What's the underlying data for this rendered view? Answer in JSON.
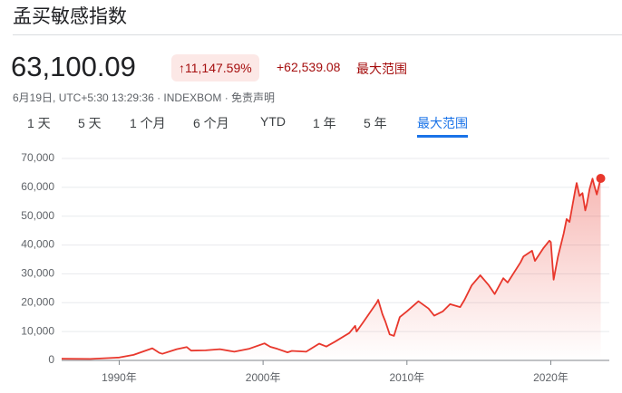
{
  "header": {
    "title": "孟买敏感指数",
    "price": "63,100.09",
    "change_pct": "↑11,147.59%",
    "change_abs": "+62,539.08",
    "range_label": "最大范围",
    "meta": "6月19日, UTC+5:30 13:29:36 · INDEXBOM ·",
    "disclaimer": "免责声明"
  },
  "tabs": [
    "1 天",
    "5 天",
    "1 个月",
    "6 个月",
    "YTD",
    "1 年",
    "5 年",
    "最大范围"
  ],
  "chart_data": {
    "type": "area",
    "color": "#e8372c",
    "x": [
      1986,
      1988,
      1990,
      1991,
      1992.3,
      1992.8,
      1993,
      1994,
      1994.7,
      1995,
      1996,
      1997,
      1998,
      1999,
      2000.1,
      2000.5,
      2001,
      2001.7,
      2002,
      2003,
      2003.9,
      2004.4,
      2005,
      2006,
      2006.4,
      2006.5,
      2007,
      2007.9,
      2008.0,
      2008.3,
      2008.5,
      2008.8,
      2009.1,
      2009.5,
      2010,
      2010.8,
      2011.5,
      2011.9,
      2012.5,
      2013,
      2013.7,
      2014,
      2014.5,
      2015.1,
      2015.7,
      2016.1,
      2016.7,
      2017,
      2017.9,
      2018.1,
      2018.7,
      2018.9,
      2019.5,
      2019.9,
      2020.0,
      2020.2,
      2020.5,
      2020.9,
      2021.1,
      2021.3,
      2021.7,
      2021.8,
      2022.0,
      2022.2,
      2022.4,
      2022.5,
      2022.7,
      2022.9,
      2023.0,
      2023.2,
      2023.47
    ],
    "values": [
      550,
      500,
      1000,
      1900,
      4200,
      2600,
      2300,
      3900,
      4600,
      3400,
      3500,
      3900,
      3000,
      4000,
      5900,
      4700,
      4000,
      2800,
      3300,
      3000,
      5800,
      4800,
      6500,
      9500,
      12000,
      10000,
      13500,
      20000,
      21000,
      16000,
      13500,
      9000,
      8500,
      15000,
      17000,
      20500,
      18000,
      15500,
      17000,
      19500,
      18500,
      21000,
      26000,
      29500,
      26000,
      23000,
      28500,
      27000,
      34000,
      36000,
      38000,
      34500,
      39000,
      41500,
      41000,
      28000,
      36000,
      44000,
      49000,
      48000,
      59000,
      61500,
      57000,
      58000,
      52000,
      54000,
      59500,
      63000,
      61000,
      57500,
      63100
    ],
    "xlim": [
      1986,
      2023.5
    ],
    "xticks": [
      {
        "value": 1990,
        "label": "1990年"
      },
      {
        "value": 2000,
        "label": "2000年"
      },
      {
        "value": 2010,
        "label": "2010年"
      },
      {
        "value": 2020,
        "label": "2020年"
      }
    ],
    "ylim": [
      0,
      70000
    ],
    "yticks": [
      0,
      {
        "value": 10000,
        "label": "10,000"
      },
      {
        "value": 20000,
        "label": "20,000"
      },
      {
        "value": 30000,
        "label": "30,000"
      },
      {
        "value": 40000,
        "label": "40,000"
      },
      {
        "value": 50000,
        "label": "50,000"
      },
      {
        "value": 60000,
        "label": "60,000"
      },
      {
        "value": 70000,
        "label": "70,000"
      }
    ],
    "grid": true
  }
}
